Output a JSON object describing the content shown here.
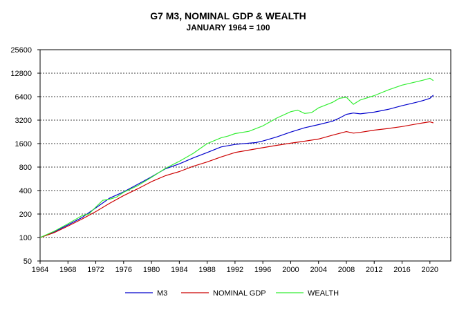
{
  "chart_data": {
    "type": "line",
    "title": "G7 M3, NOMINAL GDP & WEALTH",
    "subtitle": "JANUARY 1964 = 100",
    "xlabel": "",
    "ylabel": "",
    "y_scale": "log2",
    "xlim": [
      1964,
      2023
    ],
    "ylim": [
      50,
      25600
    ],
    "x_ticks": [
      1964,
      1968,
      1972,
      1976,
      1980,
      1984,
      1988,
      1992,
      1996,
      2000,
      2004,
      2008,
      2012,
      2016,
      2020
    ],
    "y_ticks": [
      50,
      100,
      200,
      400,
      800,
      1600,
      3200,
      6400,
      12800,
      25600
    ],
    "grid": "horizontal dashed",
    "legend_position": "bottom",
    "series": [
      {
        "name": "M3",
        "color": "#0000cc",
        "points": [
          [
            1964,
            100
          ],
          [
            1966,
            118
          ],
          [
            1968,
            145
          ],
          [
            1970,
            180
          ],
          [
            1972,
            240
          ],
          [
            1974,
            320
          ],
          [
            1976,
            385
          ],
          [
            1978,
            480
          ],
          [
            1980,
            600
          ],
          [
            1982,
            760
          ],
          [
            1984,
            880
          ],
          [
            1986,
            1050
          ],
          [
            1988,
            1230
          ],
          [
            1990,
            1450
          ],
          [
            1992,
            1560
          ],
          [
            1994,
            1620
          ],
          [
            1995,
            1650
          ],
          [
            1996,
            1730
          ],
          [
            1998,
            1950
          ],
          [
            2000,
            2250
          ],
          [
            2002,
            2550
          ],
          [
            2004,
            2800
          ],
          [
            2006,
            3100
          ],
          [
            2007,
            3400
          ],
          [
            2008,
            3800
          ],
          [
            2009,
            3950
          ],
          [
            2010,
            3850
          ],
          [
            2012,
            4050
          ],
          [
            2014,
            4400
          ],
          [
            2016,
            4900
          ],
          [
            2018,
            5400
          ],
          [
            2019,
            5700
          ],
          [
            2020,
            6100
          ],
          [
            2020.5,
            6700
          ]
        ]
      },
      {
        "name": "NOMINAL GDP",
        "color": "#cc0000",
        "points": [
          [
            1964,
            100
          ],
          [
            1966,
            115
          ],
          [
            1968,
            140
          ],
          [
            1970,
            172
          ],
          [
            1972,
            215
          ],
          [
            1974,
            275
          ],
          [
            1976,
            345
          ],
          [
            1978,
            420
          ],
          [
            1980,
            520
          ],
          [
            1982,
            620
          ],
          [
            1984,
            700
          ],
          [
            1986,
            820
          ],
          [
            1988,
            930
          ],
          [
            1990,
            1080
          ],
          [
            1992,
            1230
          ],
          [
            1994,
            1320
          ],
          [
            1996,
            1420
          ],
          [
            1998,
            1520
          ],
          [
            2000,
            1620
          ],
          [
            2002,
            1720
          ],
          [
            2004,
            1830
          ],
          [
            2006,
            2050
          ],
          [
            2008,
            2280
          ],
          [
            2009,
            2180
          ],
          [
            2010,
            2230
          ],
          [
            2012,
            2380
          ],
          [
            2014,
            2500
          ],
          [
            2016,
            2650
          ],
          [
            2018,
            2850
          ],
          [
            2019,
            2950
          ],
          [
            2020,
            3050
          ],
          [
            2020.5,
            2950
          ]
        ]
      },
      {
        "name": "WEALTH",
        "color": "#33ee33",
        "points": [
          [
            1964,
            100
          ],
          [
            1966,
            120
          ],
          [
            1968,
            150
          ],
          [
            1970,
            190
          ],
          [
            1971,
            200
          ],
          [
            1972,
            245
          ],
          [
            1973,
            300
          ],
          [
            1974,
            310
          ],
          [
            1975,
            330
          ],
          [
            1976,
            380
          ],
          [
            1978,
            460
          ],
          [
            1980,
            590
          ],
          [
            1982,
            770
          ],
          [
            1984,
            950
          ],
          [
            1986,
            1200
          ],
          [
            1988,
            1600
          ],
          [
            1990,
            1900
          ],
          [
            1991,
            2000
          ],
          [
            1992,
            2150
          ],
          [
            1994,
            2300
          ],
          [
            1996,
            2700
          ],
          [
            1998,
            3400
          ],
          [
            2000,
            4100
          ],
          [
            2001,
            4300
          ],
          [
            2002,
            3900
          ],
          [
            2003,
            4000
          ],
          [
            2004,
            4600
          ],
          [
            2006,
            5400
          ],
          [
            2007,
            6100
          ],
          [
            2008,
            6300
          ],
          [
            2009,
            5100
          ],
          [
            2010,
            5800
          ],
          [
            2012,
            6600
          ],
          [
            2014,
            7800
          ],
          [
            2016,
            9000
          ],
          [
            2018,
            9900
          ],
          [
            2019,
            10400
          ],
          [
            2020,
            11000
          ],
          [
            2020.5,
            10300
          ]
        ]
      }
    ]
  }
}
